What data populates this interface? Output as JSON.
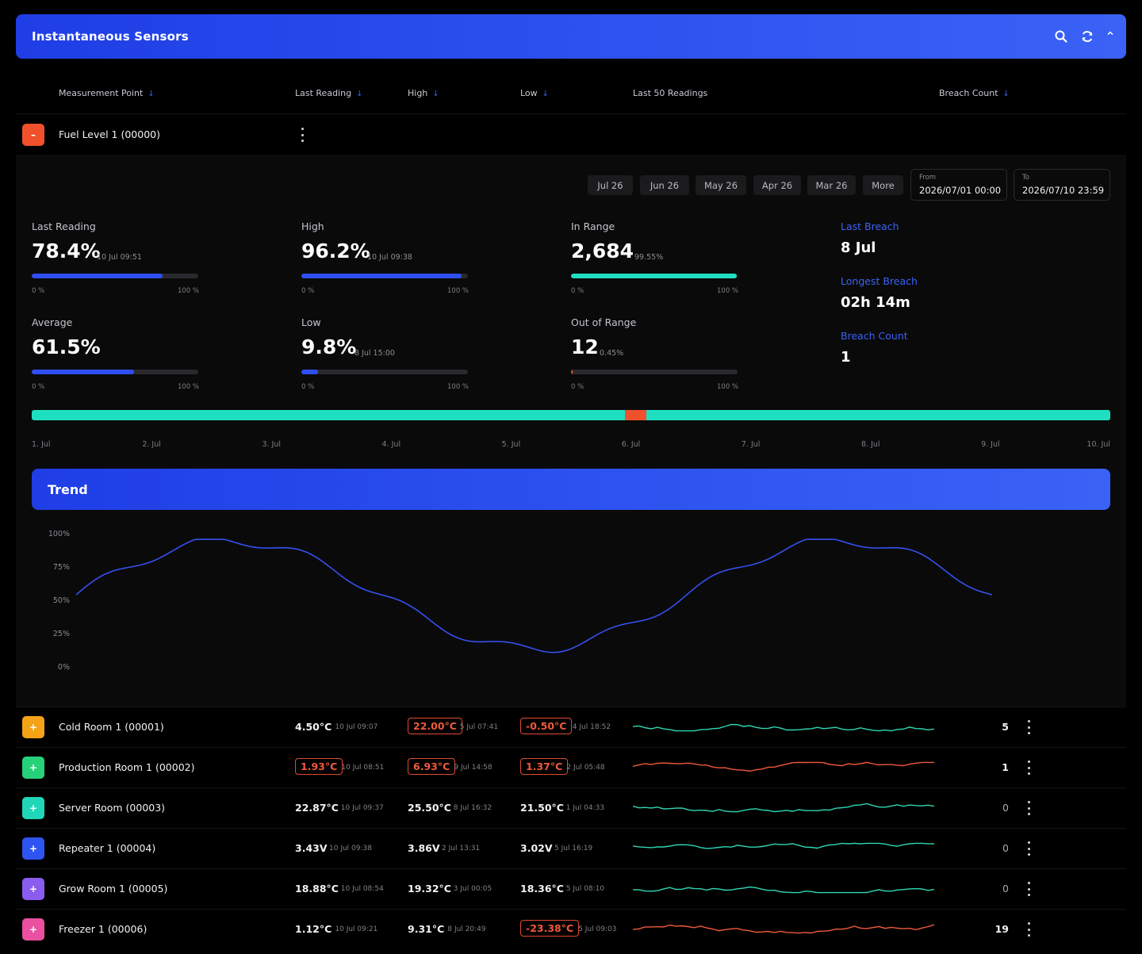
{
  "header": {
    "title": "Instantaneous Sensors"
  },
  "columns": {
    "measurement_point": "Measurement Point",
    "last_reading": "Last Reading",
    "high": "High",
    "low": "Low",
    "last50": "Last 50 Readings",
    "breach_count": "Breach Count"
  },
  "expanded": {
    "name": "Fuel Level 1 (00000)",
    "toggle": "–",
    "quick_ranges": [
      "Jul 26",
      "Jun 26",
      "May 26",
      "Apr 26",
      "Mar 26",
      "More"
    ],
    "from_label": "From",
    "from_value": "2026/07/01 00:00",
    "to_label": "To",
    "to_value": "2026/07/10 23:59",
    "metrics": {
      "last_reading": {
        "label": "Last Reading",
        "value": "78.4%",
        "sub": "10 Jul 09:51",
        "level": 0.784,
        "min": "0 %",
        "max": "100 %"
      },
      "high": {
        "label": "High",
        "value": "96.2%",
        "sub": "10 Jul 09:38",
        "level": 0.962,
        "min": "0 %",
        "max": "100 %"
      },
      "in_range": {
        "label": "In Range",
        "value": "2,684",
        "sub": "99.55%",
        "level": 0.9955,
        "min": "0 %",
        "max": "100 %"
      },
      "average": {
        "label": "Average",
        "value": "61.5%",
        "sub": "",
        "level": 0.615,
        "min": "0 %",
        "max": "100 %"
      },
      "low": {
        "label": "Low",
        "value": "9.8%",
        "sub": "8 Jul 15:00",
        "level": 0.098,
        "min": "0 %",
        "max": "100 %"
      },
      "out_of_range": {
        "label": "Out of Range",
        "value": "12",
        "sub": "0.45%",
        "level": 0.0045,
        "min": "0 %",
        "max": "100 %"
      }
    },
    "breach": {
      "last_breach_label": "Last Breach",
      "last_breach_value": "8 Jul",
      "longest_label": "Longest Breach",
      "longest_value": "02h 14m",
      "count_label": "Breach Count",
      "count_value": "1"
    },
    "timeline": {
      "labels": [
        "1. Jul",
        "2. Jul",
        "3. Jul",
        "4. Jul",
        "5. Jul",
        "6. Jul",
        "7. Jul",
        "8. Jul",
        "9. Jul",
        "10. Jul"
      ],
      "breach_start": 0.55,
      "breach_end": 0.57,
      "ok_color": "#1ee0c0",
      "breach_color": "#f0502c"
    },
    "trend": {
      "title": "Trend",
      "y_ticks": [
        "100%",
        "75%",
        "50%",
        "25%",
        "0%"
      ],
      "line_color": "#3550ee"
    }
  },
  "rows": [
    {
      "name": "Cold Room 1 (00001)",
      "color": "#f5a316",
      "last": "4.50°C",
      "last_ts": "10 Jul 09:07",
      "last_alarm": false,
      "high": "22.00°C",
      "high_ts": "5 Jul 07:41",
      "high_alarm": true,
      "low": "-0.50°C",
      "low_ts": "4 Jul 18:52",
      "low_alarm": true,
      "count": "5",
      "spark": "#2fd6b4",
      "seed": 1
    },
    {
      "name": "Production Room 1 (00002)",
      "color": "#27d17a",
      "last": "1.93°C",
      "last_ts": "10 Jul 08:51",
      "last_alarm": true,
      "high": "6.93°C",
      "high_ts": "9 Jul 14:58",
      "high_alarm": true,
      "low": "1.37°C",
      "low_ts": "2 Jul 05:48",
      "low_alarm": true,
      "count": "1",
      "spark": "#f0583c",
      "seed": 2
    },
    {
      "name": "Server Room (00003)",
      "color": "#1fd6b8",
      "last": "22.87°C",
      "last_ts": "10 Jul 09:37",
      "last_alarm": false,
      "high": "25.50°C",
      "high_ts": "8 Jul 16:32",
      "high_alarm": false,
      "low": "21.50°C",
      "low_ts": "1 Jul 04:33",
      "low_alarm": false,
      "count": "0",
      "spark": "#2fd6b4",
      "seed": 3
    },
    {
      "name": "Repeater 1 (00004)",
      "color": "#2e54f2",
      "last": "3.43V",
      "last_ts": "10 Jul 09:38",
      "last_alarm": false,
      "high": "3.86V",
      "high_ts": "2 Jul 13:31",
      "high_alarm": false,
      "low": "3.02V",
      "low_ts": "5 Jul 16:19",
      "low_alarm": false,
      "count": "0",
      "spark": "#2fd6b4",
      "seed": 4
    },
    {
      "name": "Grow Room 1 (00005)",
      "color": "#8b5cf0",
      "last": "18.88°C",
      "last_ts": "10 Jul 08:54",
      "last_alarm": false,
      "high": "19.32°C",
      "high_ts": "3 Jul 00:05",
      "high_alarm": false,
      "low": "18.36°C",
      "low_ts": "5 Jul 08:10",
      "low_alarm": false,
      "count": "0",
      "spark": "#2fd6b4",
      "seed": 5
    },
    {
      "name": "Freezer 1 (00006)",
      "color": "#ea4fa0",
      "last": "1.12°C",
      "last_ts": "10 Jul 09:21",
      "last_alarm": false,
      "high": "9.31°C",
      "high_ts": "8 Jul 20:49",
      "high_alarm": false,
      "low": "-23.38°C",
      "low_ts": "5 Jul 09:03",
      "low_alarm": true,
      "count": "19",
      "spark": "#f0583c",
      "seed": 6
    }
  ],
  "row_toggle": "+"
}
